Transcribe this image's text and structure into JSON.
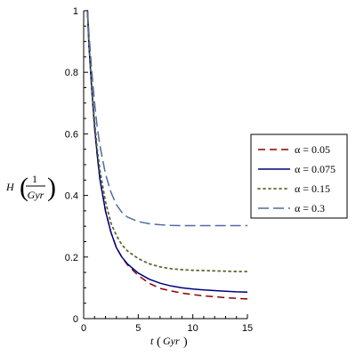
{
  "chart_data": {
    "type": "line",
    "xlabel": {
      "symbol": "t",
      "unit": "Gyr"
    },
    "ylabel": {
      "symbol": "H",
      "numerator": "1",
      "denominator": "Gyr"
    },
    "xlim": [
      0,
      15
    ],
    "ylim": [
      0,
      1
    ],
    "x_ticks": [
      0,
      5,
      10,
      15
    ],
    "y_ticks": [
      0,
      0.2,
      0.4,
      0.6,
      0.8,
      1
    ],
    "x_tick_labels": [
      "0",
      "5",
      "10",
      "15"
    ],
    "y_tick_labels": [
      "0",
      "0.2",
      "0.4",
      "0.6",
      "0.8",
      "1"
    ],
    "legend_position": "right",
    "grid": false,
    "series": [
      {
        "name": "α = 0.05",
        "color": "#8b0000",
        "dash": "dash",
        "x": [
          0.35,
          0.5,
          0.75,
          1,
          1.25,
          1.5,
          2,
          2.5,
          3,
          3.5,
          4,
          5,
          6,
          7,
          8,
          9,
          10,
          11,
          12,
          13,
          14,
          15
        ],
        "y": [
          1.0,
          0.88,
          0.74,
          0.62,
          0.53,
          0.45,
          0.35,
          0.28,
          0.23,
          0.2,
          0.175,
          0.14,
          0.115,
          0.098,
          0.09,
          0.083,
          0.078,
          0.074,
          0.071,
          0.068,
          0.066,
          0.064
        ]
      },
      {
        "name": "α = 0.075",
        "color": "#000080",
        "dash": "solid",
        "x": [
          0.35,
          0.5,
          0.75,
          1,
          1.25,
          1.5,
          2,
          2.5,
          3,
          3.5,
          4,
          5,
          6,
          7,
          8,
          9,
          10,
          11,
          12,
          13,
          14,
          15
        ],
        "y": [
          1.0,
          0.88,
          0.74,
          0.62,
          0.53,
          0.45,
          0.35,
          0.28,
          0.23,
          0.2,
          0.178,
          0.148,
          0.128,
          0.115,
          0.106,
          0.1,
          0.096,
          0.093,
          0.091,
          0.089,
          0.087,
          0.086
        ]
      },
      {
        "name": "α = 0.15",
        "color": "#556b2f",
        "dash": "dot",
        "x": [
          0.35,
          0.5,
          0.75,
          1,
          1.25,
          1.5,
          2,
          2.5,
          3,
          3.5,
          4,
          5,
          6,
          7,
          8,
          9,
          10,
          11,
          12,
          13,
          14,
          15
        ],
        "y": [
          1.0,
          0.89,
          0.75,
          0.64,
          0.55,
          0.48,
          0.38,
          0.31,
          0.27,
          0.24,
          0.22,
          0.195,
          0.178,
          0.168,
          0.162,
          0.159,
          0.157,
          0.156,
          0.155,
          0.154,
          0.153,
          0.153
        ]
      },
      {
        "name": "α = 0.3",
        "color": "#4f6d9e",
        "dash": "longdash",
        "x": [
          0.35,
          0.5,
          0.75,
          1,
          1.25,
          1.5,
          2,
          2.5,
          3,
          3.5,
          4,
          5,
          6,
          7,
          8,
          9,
          10,
          11,
          12,
          13,
          14,
          15
        ],
        "y": [
          1.0,
          0.92,
          0.8,
          0.7,
          0.62,
          0.56,
          0.47,
          0.41,
          0.37,
          0.345,
          0.33,
          0.315,
          0.308,
          0.305,
          0.303,
          0.302,
          0.302,
          0.302,
          0.302,
          0.302,
          0.302,
          0.302
        ]
      }
    ]
  }
}
